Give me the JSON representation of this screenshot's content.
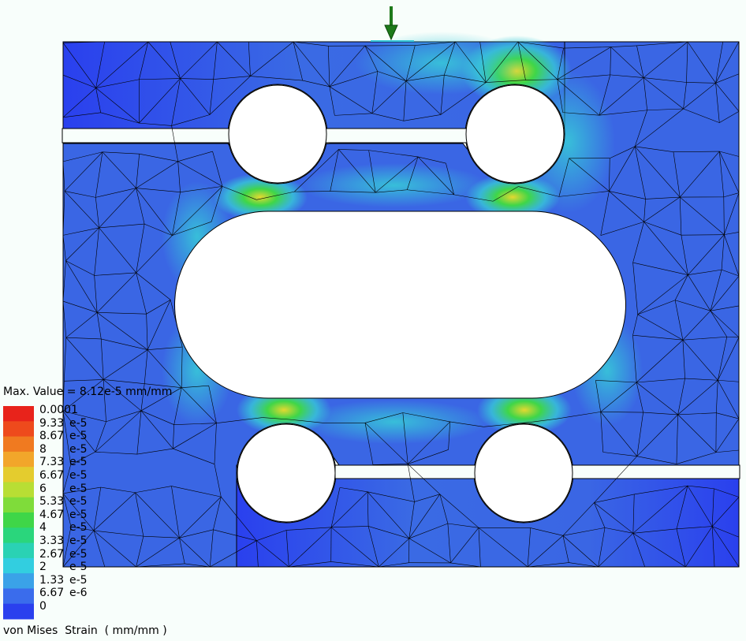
{
  "max_value_label": "Max. Value = 8.12e-5 mm/mm",
  "result_label": "von Mises  Strain  ( mm/mm )",
  "legend": {
    "colors": [
      "#e8231b",
      "#ee4a1c",
      "#f07a20",
      "#f2a62a",
      "#e4cc2e",
      "#b8de34",
      "#7fdc3a",
      "#3fd648",
      "#2ad67c",
      "#2ad2b4",
      "#32cee0",
      "#3aa2e8",
      "#3a6cec",
      "#2a40ee"
    ],
    "ticks": [
      {
        "value": "0.0001",
        "unit": ""
      },
      {
        "value": "9.33",
        "unit": "e-5"
      },
      {
        "value": "8.67",
        "unit": "e-5"
      },
      {
        "value": "8",
        "unit": "e-5"
      },
      {
        "value": "7.33",
        "unit": "e-5"
      },
      {
        "value": "6.67",
        "unit": "e-5"
      },
      {
        "value": "6",
        "unit": "e-5"
      },
      {
        "value": "5.33",
        "unit": "e-5"
      },
      {
        "value": "4.67",
        "unit": "e-5"
      },
      {
        "value": "4",
        "unit": "e-5"
      },
      {
        "value": "3.33",
        "unit": "e-5"
      },
      {
        "value": "2.67",
        "unit": "e-5"
      },
      {
        "value": "2",
        "unit": "e-5"
      },
      {
        "value": "1.33",
        "unit": "e-5"
      },
      {
        "value": "6.67",
        "unit": "e-6"
      },
      {
        "value": "0",
        "unit": ""
      }
    ]
  },
  "colors": {
    "background": "#f8fefb",
    "part_base": "#2f52e8",
    "part_low": "#3a62e6",
    "strain_mid": "#37c8d8",
    "strain_high": "#3fd648",
    "strain_peak": "#e4d830",
    "hole_fill": "#ffffff",
    "mesh": "#000000",
    "load_arrow": "#1e7a1a"
  },
  "load_arrow_icon": "down-arrow-icon"
}
